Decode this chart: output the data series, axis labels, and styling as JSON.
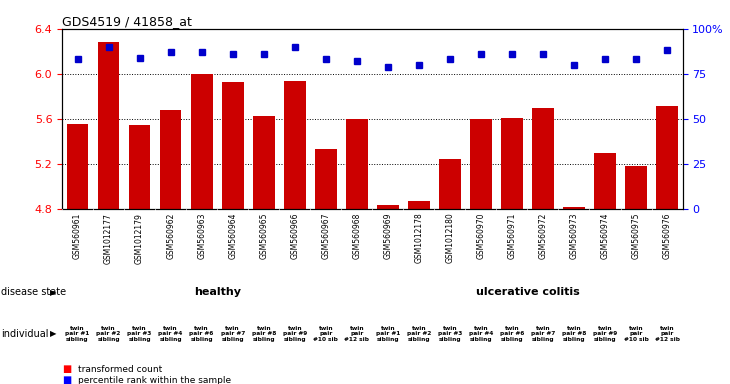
{
  "title": "GDS4519 / 41858_at",
  "samples": [
    "GSM560961",
    "GSM1012177",
    "GSM1012179",
    "GSM560962",
    "GSM560963",
    "GSM560964",
    "GSM560965",
    "GSM560966",
    "GSM560967",
    "GSM560968",
    "GSM560969",
    "GSM1012178",
    "GSM1012180",
    "GSM560970",
    "GSM560971",
    "GSM560972",
    "GSM560973",
    "GSM560974",
    "GSM560975",
    "GSM560976"
  ],
  "bar_values": [
    5.56,
    6.28,
    5.55,
    5.68,
    6.0,
    5.93,
    5.63,
    5.94,
    5.33,
    5.6,
    4.84,
    4.87,
    5.25,
    5.6,
    5.61,
    5.7,
    4.82,
    5.3,
    5.18,
    5.72
  ],
  "percentile_values": [
    83,
    90,
    84,
    87,
    87,
    86,
    86,
    90,
    83,
    82,
    79,
    80,
    83,
    86,
    86,
    86,
    80,
    83,
    83,
    88
  ],
  "ylim_left": [
    4.8,
    6.4
  ],
  "ylim_right": [
    0,
    100
  ],
  "yticks_left": [
    4.8,
    5.2,
    5.6,
    6.0,
    6.4
  ],
  "yticks_right": [
    0,
    25,
    50,
    75,
    100
  ],
  "bar_color": "#cc0000",
  "dot_color": "#0000cc",
  "grid_values": [
    4.8,
    5.2,
    5.6,
    6.0
  ],
  "individuals": [
    "twin\npair #1\nsibling",
    "twin\npair #2\nsibling",
    "twin\npair #3\nsibling",
    "twin\npair #4\nsibling",
    "twin\npair #6\nsibling",
    "twin\npair #7\nsibling",
    "twin\npair #8\nsibling",
    "twin\npair #9\nsibling",
    "twin\npair\n#10 sib",
    "twin\npair\n#12 sib",
    "twin\npair #1\nsibling",
    "twin\npair #2\nsibling",
    "twin\npair #3\nsibling",
    "twin\npair #4\nsibling",
    "twin\npair #6\nsibling",
    "twin\npair #7\nsibling",
    "twin\npair #8\nsibling",
    "twin\npair #9\nsibling",
    "twin\npair\n#10 sib",
    "twin\npair\n#12 sib"
  ],
  "healthy_color": "#90ee90",
  "uc_color": "#90ee90",
  "ind_color": "#ee82ee",
  "n_healthy": 10,
  "n_uc": 10
}
